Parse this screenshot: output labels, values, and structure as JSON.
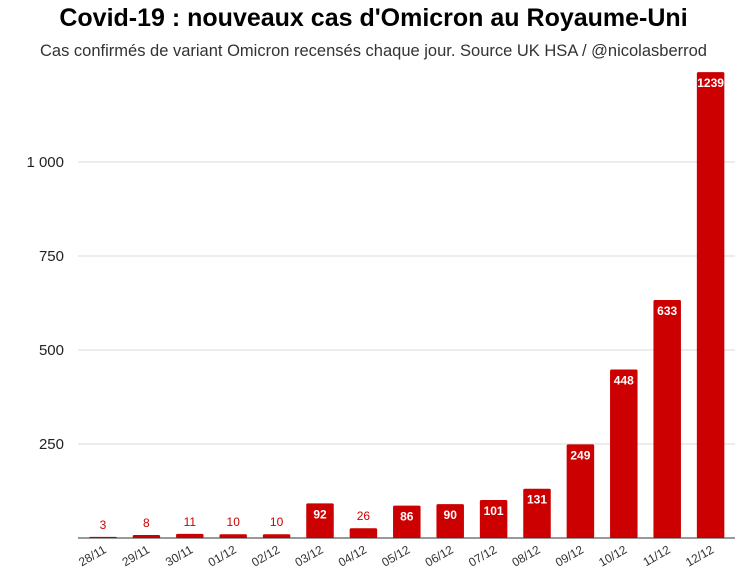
{
  "chart_data": {
    "type": "bar",
    "title": "Covid-19 : nouveaux cas d'Omicron au Royaume-Uni",
    "subtitle": "Cas confirmés de variant Omicron recensés chaque jour. Source UK HSA / @nicolasberrod",
    "categories": [
      "28/11",
      "29/11",
      "30/11",
      "01/12",
      "02/12",
      "03/12",
      "04/12",
      "05/12",
      "06/12",
      "07/12",
      "08/12",
      "09/12",
      "10/12",
      "11/12",
      "12/12"
    ],
    "values": [
      3,
      8,
      11,
      10,
      10,
      92,
      26,
      86,
      90,
      101,
      131,
      249,
      448,
      633,
      1239
    ],
    "value_labels": [
      "3",
      "8",
      "11",
      "10",
      "10",
      "92",
      "26",
      "86",
      "90",
      "101",
      "131",
      "249",
      "448",
      "633",
      "1239"
    ],
    "yticks": [
      250,
      500,
      750,
      1000
    ],
    "ytick_labels": [
      "250",
      "500",
      "750",
      "1 000"
    ],
    "ylim": [
      0,
      1250
    ],
    "grid": true,
    "bar_color": "#cc0000"
  }
}
